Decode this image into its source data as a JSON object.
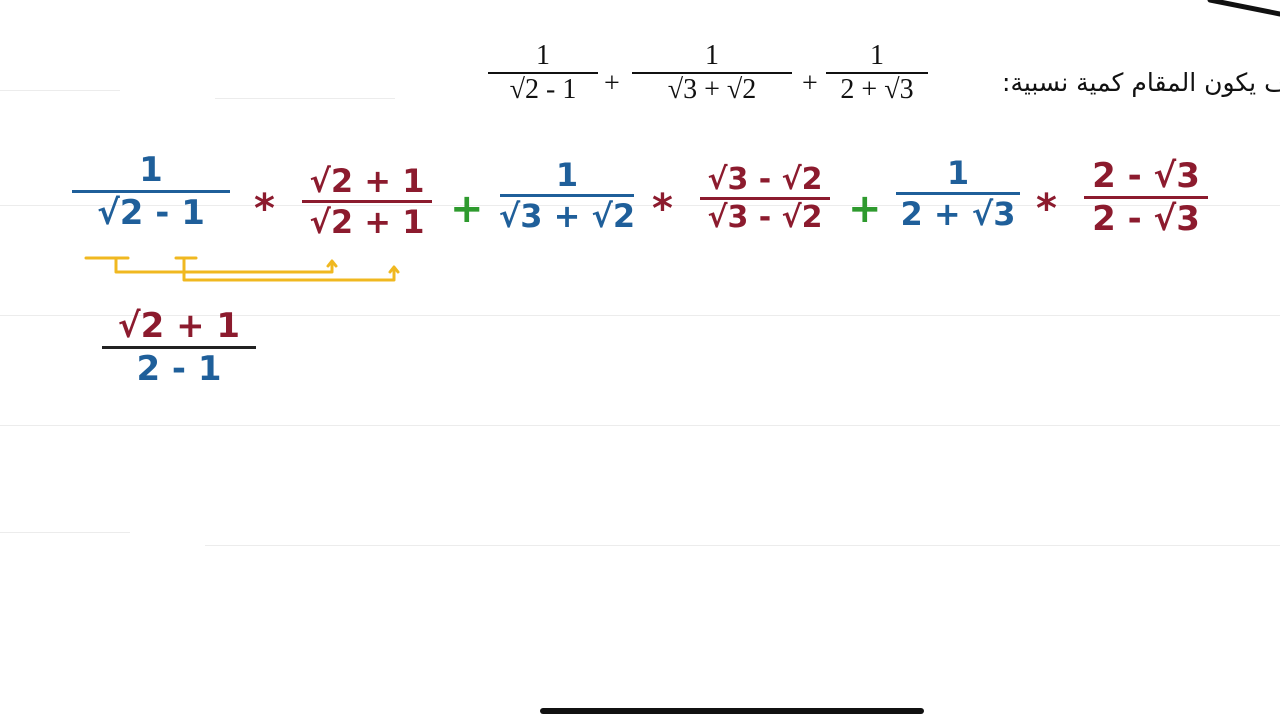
{
  "problem": {
    "instruction": "ف يكون المقام كمية نسبية:",
    "terms": [
      {
        "num": "1",
        "den": "√2 - 1"
      },
      {
        "num": "1",
        "den": "√3 +  √2"
      },
      {
        "num": "1",
        "den": "2 + √3"
      }
    ],
    "plus": "+"
  },
  "work": {
    "times": "*",
    "plus": "+",
    "step1": [
      {
        "num": "1",
        "den": "√2 - 1",
        "conj_num": "√2 + 1",
        "conj_den": "√2 + 1"
      },
      {
        "num": "1",
        "den": "√3 + √2",
        "conj_num": "√3 - √2",
        "conj_den": "√3 - √2"
      },
      {
        "num": "1",
        "den": "2 + √3",
        "conj_num": "2 - √3",
        "conj_den": "2 - √3"
      }
    ],
    "step2": {
      "num": "√2 + 1",
      "den": "2 - 1"
    }
  },
  "colors": {
    "blue": "#1f5f9a",
    "red": "#8c1b2e",
    "green": "#2e9a2e",
    "yellow": "#f0b820"
  }
}
